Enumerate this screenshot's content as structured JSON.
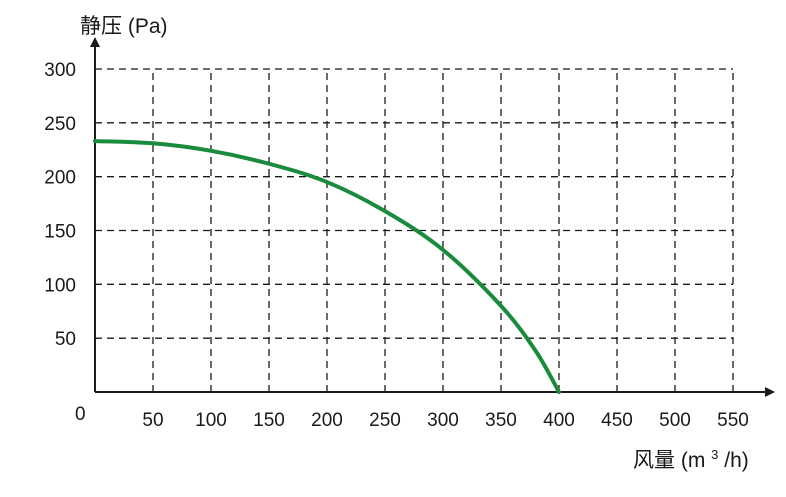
{
  "chart_data": {
    "type": "line",
    "xlabel_prefix": "风量 (m",
    "xlabel_sup": "3",
    "xlabel_suffix": "/h)",
    "ylabel": "静压 (Pa)",
    "origin_label": "0",
    "xlim": [
      0,
      550
    ],
    "ylim": [
      0,
      300
    ],
    "x_ticks": [
      50,
      100,
      150,
      200,
      250,
      300,
      350,
      400,
      450,
      500,
      550
    ],
    "y_ticks": [
      50,
      100,
      150,
      200,
      250,
      300
    ],
    "grid": true,
    "grid_style": "dashed",
    "series": [
      {
        "color": "#1a8a3c",
        "x": [
          0,
          50,
          100,
          150,
          200,
          250,
          300,
          350,
          380,
          400
        ],
        "y": [
          233,
          231,
          224,
          212,
          195,
          168,
          132,
          80,
          38,
          0
        ]
      }
    ]
  }
}
